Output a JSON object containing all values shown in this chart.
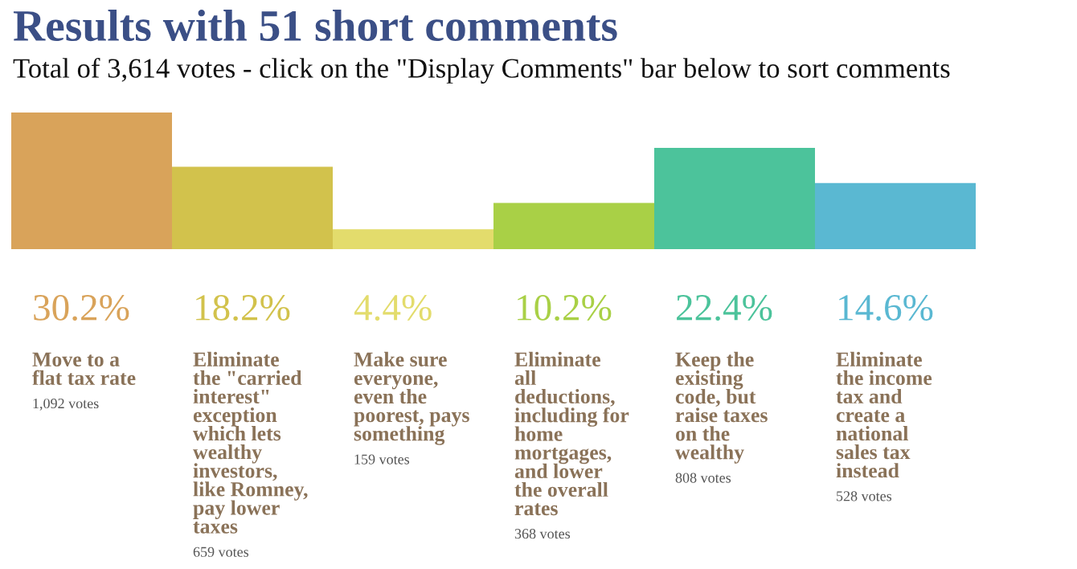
{
  "chart_data": {
    "type": "bar",
    "title": "Results with 51 short comments",
    "subtitle": "Total of 3,614 votes - click on the \"Display Comments\" bar below to sort comments",
    "categories": [
      "Move to a\nflat tax rate",
      "Eliminate\nthe \"carried\ninterest\"\nexception\nwhich lets\nwealthy\ninvestors,\nlike Romney,\npay lower\ntaxes",
      "Make sure\neveryone,\neven the\npoorest, pays\nsomething",
      "Eliminate\nall\ndeductions,\nincluding for\nhome\nmortgages,\nand lower\nthe overall\nrates",
      "Keep the\nexisting\ncode, but\nraise taxes\non the\nwealthy",
      "Eliminate\nthe income\ntax and\ncreate a\nnational\nsales tax\ninstead"
    ],
    "values": [
      30.2,
      18.2,
      4.4,
      10.2,
      22.4,
      14.6
    ],
    "value_labels": [
      "30.2%",
      "18.2%",
      "4.4%",
      "10.2%",
      "22.4%",
      "14.6%"
    ],
    "colors": [
      "#d9a35a",
      "#d2c24c",
      "#e3dc6c",
      "#a9d046",
      "#4cc39b",
      "#5ab8d2"
    ],
    "annotations": [
      "1,092 votes",
      "659 votes",
      "159 votes",
      "368 votes",
      "808 votes",
      "528 votes"
    ],
    "grid": false
  }
}
